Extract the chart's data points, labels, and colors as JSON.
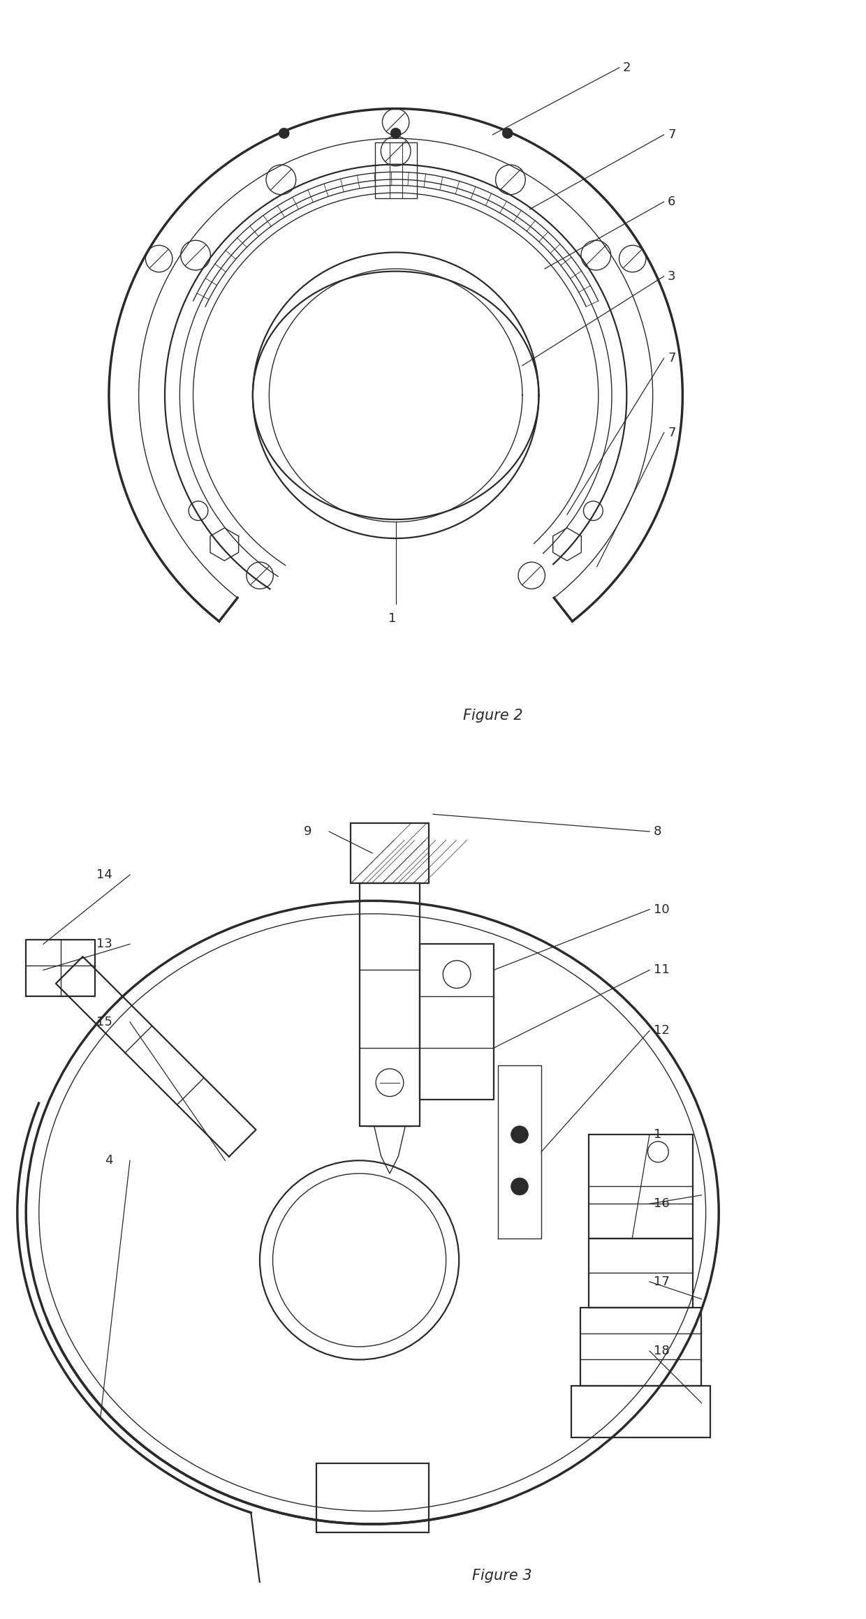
{
  "bg_color": "#ffffff",
  "line_color": "#2a2a2a",
  "fig_width": 12.4,
  "fig_height": 23.19,
  "dpi": 100
}
